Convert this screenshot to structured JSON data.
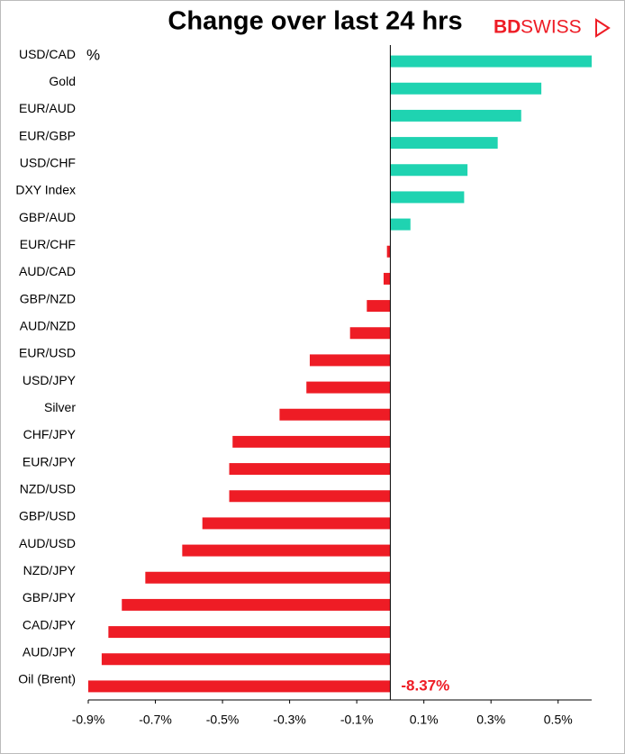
{
  "chart_data": {
    "type": "barh",
    "title": "Change over last 24 hrs",
    "logo": [
      "BD",
      "SWISS"
    ],
    "unit_label": "%",
    "categories": [
      "USD/CAD",
      "Gold",
      "EUR/AUD",
      "EUR/GBP",
      "USD/CHF",
      "DXY Index",
      "GBP/AUD",
      "EUR/CHF",
      "AUD/CAD",
      "GBP/NZD",
      "AUD/NZD",
      "EUR/USD",
      "USD/JPY",
      "Silver",
      "CHF/JPY",
      "EUR/JPY",
      "NZD/USD",
      "GBP/USD",
      "AUD/USD",
      "NZD/JPY",
      "GBP/JPY",
      "CAD/JPY",
      "AUD/JPY",
      "Oil (Brent)"
    ],
    "values": [
      0.6,
      0.45,
      0.39,
      0.32,
      0.23,
      0.22,
      0.06,
      -0.01,
      -0.02,
      -0.07,
      -0.12,
      -0.24,
      -0.25,
      -0.33,
      -0.47,
      -0.48,
      -0.48,
      -0.56,
      -0.62,
      -0.73,
      -0.8,
      -0.84,
      -0.86,
      -8.37
    ],
    "value_labels": [
      null,
      null,
      null,
      null,
      null,
      null,
      null,
      null,
      null,
      null,
      null,
      null,
      null,
      null,
      null,
      null,
      null,
      null,
      null,
      null,
      null,
      null,
      null,
      "-8.37%"
    ],
    "positive_color": "#1fd3b1",
    "negative_color": "#ee1c25",
    "xlim": [
      -0.9,
      0.6
    ],
    "xticks": [
      {
        "value": -0.9,
        "label": "-0.9%"
      },
      {
        "value": -0.7,
        "label": "-0.7%"
      },
      {
        "value": -0.5,
        "label": "-0.5%"
      },
      {
        "value": -0.3,
        "label": "-0.3%"
      },
      {
        "value": -0.1,
        "label": "-0.1%"
      },
      {
        "value": 0.1,
        "label": "0.1%"
      },
      {
        "value": 0.3,
        "label": "0.3%"
      },
      {
        "value": 0.5,
        "label": "0.5%"
      }
    ],
    "grid": false
  }
}
